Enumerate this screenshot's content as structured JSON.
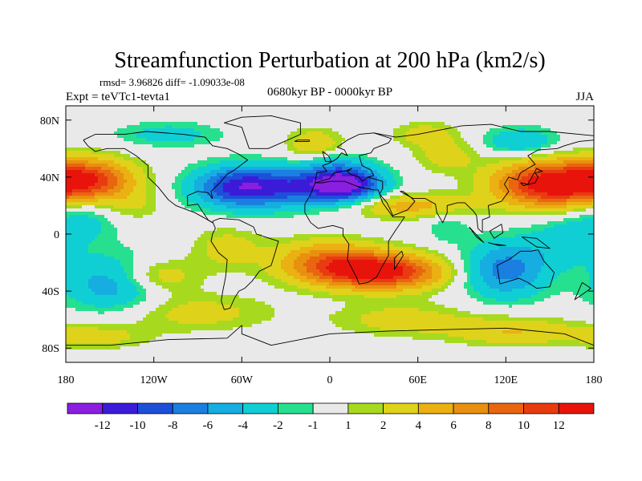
{
  "chart_data": {
    "type": "filled-contour-map",
    "title": "Streamfunction Perturbation at 200 hPa (km2/s)",
    "stats_line": "rmsd= 3.96826 diff= -1.09033e-08",
    "experiment_label": "Expt = teVTc1-tevta1",
    "period_label": "0680kyr BP - 0000kyr BP",
    "season_label": "JJA",
    "x_axis": {
      "range": [
        -180,
        180
      ],
      "ticks": [
        -180,
        -120,
        -60,
        0,
        60,
        120,
        180
      ],
      "tick_labels": [
        "180",
        "120W",
        "60W",
        "0",
        "60E",
        "120E",
        "180"
      ]
    },
    "y_axis": {
      "range": [
        -90,
        90
      ],
      "ticks": [
        80,
        40,
        0,
        -40,
        -80
      ],
      "tick_labels": [
        "80N",
        "40N",
        "0",
        "40S",
        "80S"
      ]
    },
    "colorbar": {
      "labels": [
        "-12",
        "-10",
        "-8",
        "-6",
        "-4",
        "-2",
        "-1",
        "1",
        "2",
        "4",
        "6",
        "8",
        "10",
        "12"
      ],
      "colors": [
        "#8a1fe0",
        "#3c1bd8",
        "#1d4fd9",
        "#1a7fe0",
        "#16aee0",
        "#10cfd4",
        "#27e08f",
        "#e9e9e9",
        "#a7da1e",
        "#dfd21a",
        "#ebb012",
        "#e89010",
        "#ea6510",
        "#e83c10",
        "#e8140c"
      ]
    },
    "field_centers": [
      {
        "lon": 10,
        "lat": 35,
        "value": -14,
        "sx": 18,
        "sy": 9
      },
      {
        "lon": -62,
        "lat": 33,
        "value": -11,
        "sx": 22,
        "sy": 10
      },
      {
        "lon": -25,
        "lat": 33,
        "value": -6,
        "sx": 20,
        "sy": 10
      },
      {
        "lon": 120,
        "lat": -25,
        "value": -7,
        "sx": 20,
        "sy": 14
      },
      {
        "lon": 52,
        "lat": 20,
        "value": 5,
        "sx": 30,
        "sy": 6
      },
      {
        "lon": 0,
        "lat": 52,
        "value": -2,
        "sx": 14,
        "sy": 6
      },
      {
        "lon": -145,
        "lat": -35,
        "value": -6,
        "sx": 25,
        "sy": 14
      },
      {
        "lon": -170,
        "lat": 10,
        "value": -3,
        "sx": 18,
        "sy": 12
      },
      {
        "lon": 160,
        "lat": -5,
        "value": -3,
        "sx": 18,
        "sy": 12
      },
      {
        "lon": 80,
        "lat": 55,
        "value": 3,
        "sx": 15,
        "sy": 8
      },
      {
        "lon": 150,
        "lat": 35,
        "value": 14,
        "sx": 26,
        "sy": 11
      },
      {
        "lon": -165,
        "lat": 38,
        "value": 11,
        "sx": 22,
        "sy": 10
      },
      {
        "lon": 20,
        "lat": -25,
        "value": 12,
        "sx": 30,
        "sy": 9
      },
      {
        "lon": 50,
        "lat": -28,
        "value": 5,
        "sx": 24,
        "sy": 8
      },
      {
        "lon": -5,
        "lat": -15,
        "value": 4,
        "sx": 24,
        "sy": 9
      },
      {
        "lon": -10,
        "lat": 62,
        "value": 4,
        "sx": 13,
        "sy": 8
      },
      {
        "lon": 65,
        "lat": 70,
        "value": 3,
        "sx": 15,
        "sy": 6
      },
      {
        "lon": 130,
        "lat": 65,
        "value": -4,
        "sx": 18,
        "sy": 7
      },
      {
        "lon": -110,
        "lat": 70,
        "value": -3,
        "sx": 25,
        "sy": 6
      },
      {
        "lon": -120,
        "lat": -30,
        "value": 5,
        "sx": 20,
        "sy": 9
      },
      {
        "lon": -70,
        "lat": -10,
        "value": 3,
        "sx": 16,
        "sy": 10
      },
      {
        "lon": -95,
        "lat": -55,
        "value": 3,
        "sx": 38,
        "sy": 9
      },
      {
        "lon": 50,
        "lat": -60,
        "value": 3,
        "sx": 32,
        "sy": 8
      },
      {
        "lon": 125,
        "lat": -68,
        "value": 4,
        "sx": 30,
        "sy": 7
      },
      {
        "lon": -160,
        "lat": -72,
        "value": 3,
        "sx": 25,
        "sy": 6
      },
      {
        "lon": -135,
        "lat": 20,
        "value": 2,
        "sx": 14,
        "sy": 8
      },
      {
        "lon": 80,
        "lat": 5,
        "value": -2,
        "sx": 10,
        "sy": 8
      }
    ],
    "coastlines": [
      [
        [
          -168,
          66
        ],
        [
          -160,
          70
        ],
        [
          -140,
          70
        ],
        [
          -125,
          72
        ],
        [
          -100,
          70
        ],
        [
          -85,
          68
        ],
        [
          -80,
          62
        ],
        [
          -70,
          60
        ],
        [
          -62,
          56
        ],
        [
          -56,
          52
        ],
        [
          -65,
          45
        ],
        [
          -70,
          42
        ],
        [
          -75,
          36
        ],
        [
          -81,
          30
        ],
        [
          -80,
          25
        ],
        [
          -83,
          29
        ],
        [
          -90,
          30
        ],
        [
          -97,
          27
        ],
        [
          -97,
          20
        ],
        [
          -90,
          21
        ],
        [
          -87,
          16
        ],
        [
          -83,
          10
        ],
        [
          -80,
          8
        ],
        [
          -85,
          11
        ],
        [
          -92,
          15
        ],
        [
          -105,
          20
        ],
        [
          -110,
          24
        ],
        [
          -117,
          33
        ],
        [
          -124,
          40
        ],
        [
          -124,
          48
        ],
        [
          -132,
          55
        ],
        [
          -140,
          60
        ],
        [
          -152,
          60
        ],
        [
          -160,
          58
        ],
        [
          -165,
          62
        ],
        [
          -168,
          66
        ]
      ],
      [
        [
          -80,
          9
        ],
        [
          -75,
          11
        ],
        [
          -62,
          10
        ],
        [
          -52,
          5
        ],
        [
          -50,
          0
        ],
        [
          -44,
          -2
        ],
        [
          -35,
          -5
        ],
        [
          -37,
          -12
        ],
        [
          -40,
          -22
        ],
        [
          -48,
          -26
        ],
        [
          -53,
          -33
        ],
        [
          -58,
          -38
        ],
        [
          -62,
          -40
        ],
        [
          -65,
          -45
        ],
        [
          -68,
          -52
        ],
        [
          -72,
          -53
        ],
        [
          -74,
          -47
        ],
        [
          -73,
          -40
        ],
        [
          -71,
          -30
        ],
        [
          -70,
          -18
        ],
        [
          -76,
          -13
        ],
        [
          -81,
          -5
        ],
        [
          -80,
          0
        ],
        [
          -78,
          4
        ],
        [
          -80,
          9
        ]
      ],
      [
        [
          -10,
          36
        ],
        [
          -5,
          36
        ],
        [
          0,
          37
        ],
        [
          10,
          37
        ],
        [
          20,
          33
        ],
        [
          30,
          31
        ],
        [
          33,
          31
        ],
        [
          36,
          22
        ],
        [
          43,
          12
        ],
        [
          51,
          12
        ],
        [
          45,
          3
        ],
        [
          40,
          -5
        ],
        [
          40,
          -15
        ],
        [
          35,
          -24
        ],
        [
          32,
          -30
        ],
        [
          26,
          -34
        ],
        [
          20,
          -35
        ],
        [
          18,
          -30
        ],
        [
          12,
          -18
        ],
        [
          13,
          -7
        ],
        [
          9,
          -1
        ],
        [
          9,
          4
        ],
        [
          2,
          6
        ],
        [
          -8,
          4
        ],
        [
          -13,
          8
        ],
        [
          -17,
          15
        ],
        [
          -17,
          21
        ],
        [
          -13,
          28
        ],
        [
          -10,
          36
        ]
      ],
      [
        [
          -10,
          36
        ],
        [
          -9,
          43
        ],
        [
          -2,
          44
        ],
        [
          -5,
          48
        ],
        [
          0,
          50
        ],
        [
          5,
          53
        ],
        [
          8,
          57
        ],
        [
          12,
          55
        ],
        [
          10,
          59
        ],
        [
          5,
          61
        ],
        [
          12,
          66
        ],
        [
          20,
          70
        ],
        [
          30,
          71
        ],
        [
          42,
          67
        ],
        [
          40,
          64
        ],
        [
          30,
          60
        ],
        [
          28,
          57
        ],
        [
          20,
          55
        ],
        [
          22,
          48
        ],
        [
          28,
          45
        ],
        [
          30,
          41
        ],
        [
          26,
          40
        ],
        [
          22,
          37
        ],
        [
          20,
          40
        ],
        [
          14,
          42
        ],
        [
          12,
          44
        ],
        [
          15,
          46
        ],
        [
          10,
          44
        ],
        [
          8,
          44
        ],
        [
          3,
          43
        ],
        [
          0,
          39
        ],
        [
          -10,
          36
        ]
      ],
      [
        [
          30,
          71
        ],
        [
          45,
          68
        ],
        [
          60,
          70
        ],
        [
          75,
          73
        ],
        [
          90,
          76
        ],
        [
          110,
          77
        ],
        [
          130,
          72
        ],
        [
          150,
          72
        ],
        [
          170,
          70
        ],
        [
          180,
          69
        ]
      ],
      [
        [
          26,
          40
        ],
        [
          36,
          37
        ],
        [
          36,
          32
        ],
        [
          34,
          28
        ],
        [
          39,
          22
        ],
        [
          43,
          13
        ],
        [
          53,
          17
        ],
        [
          58,
          23
        ],
        [
          55,
          26
        ],
        [
          50,
          30
        ],
        [
          48,
          30
        ],
        [
          55,
          26
        ],
        [
          57,
          25
        ],
        [
          65,
          25
        ],
        [
          72,
          21
        ],
        [
          73,
          15
        ],
        [
          77,
          8
        ],
        [
          80,
          15
        ],
        [
          80,
          20
        ],
        [
          87,
          22
        ],
        [
          92,
          22
        ],
        [
          98,
          16
        ],
        [
          100,
          13
        ],
        [
          101,
          4
        ],
        [
          104,
          1
        ],
        [
          104,
          10
        ],
        [
          109,
          12
        ],
        [
          108,
          20
        ],
        [
          117,
          23
        ],
        [
          122,
          30
        ],
        [
          119,
          35
        ],
        [
          122,
          40
        ],
        [
          128,
          38
        ],
        [
          130,
          43
        ],
        [
          140,
          49
        ],
        [
          135,
          55
        ],
        [
          142,
          59
        ],
        [
          155,
          60
        ],
        [
          160,
          62
        ],
        [
          170,
          65
        ],
        [
          180,
          66
        ]
      ],
      [
        [
          -5,
          58
        ],
        [
          -3,
          51
        ],
        [
          1,
          51
        ],
        [
          -1,
          55
        ],
        [
          -5,
          58
        ]
      ],
      [
        [
          -24,
          65
        ],
        [
          -14,
          65
        ],
        [
          -14,
          66
        ],
        [
          -22,
          66
        ],
        [
          -24,
          65
        ]
      ],
      [
        [
          -55,
          60
        ],
        [
          -42,
          60
        ],
        [
          -20,
          70
        ],
        [
          -20,
          78
        ],
        [
          -40,
          83
        ],
        [
          -60,
          82
        ],
        [
          -72,
          78
        ],
        [
          -60,
          75
        ],
        [
          -55,
          60
        ]
      ],
      [
        [
          130,
          36
        ],
        [
          132,
          34
        ],
        [
          140,
          36
        ],
        [
          142,
          40
        ],
        [
          140,
          43
        ],
        [
          145,
          44
        ],
        [
          141,
          46
        ],
        [
          135,
          35
        ],
        [
          130,
          36
        ]
      ],
      [
        [
          95,
          5
        ],
        [
          105,
          -6
        ],
        [
          100,
          -2
        ],
        [
          95,
          5
        ]
      ],
      [
        [
          108,
          -6
        ],
        [
          115,
          -8
        ],
        [
          120,
          -8
        ],
        [
          112,
          -7
        ],
        [
          108,
          -6
        ]
      ],
      [
        [
          109,
          2
        ],
        [
          112,
          -3
        ],
        [
          118,
          1
        ],
        [
          117,
          7
        ],
        [
          109,
          2
        ]
      ],
      [
        [
          131,
          -2
        ],
        [
          141,
          -3
        ],
        [
          150,
          -10
        ],
        [
          141,
          -9
        ],
        [
          131,
          -2
        ]
      ],
      [
        [
          114,
          -22
        ],
        [
          122,
          -18
        ],
        [
          130,
          -12
        ],
        [
          137,
          -12
        ],
        [
          142,
          -11
        ],
        [
          146,
          -19
        ],
        [
          153,
          -27
        ],
        [
          150,
          -37
        ],
        [
          141,
          -38
        ],
        [
          135,
          -34
        ],
        [
          129,
          -31
        ],
        [
          116,
          -35
        ],
        [
          114,
          -22
        ]
      ],
      [
        [
          172,
          -34
        ],
        [
          178,
          -38
        ],
        [
          174,
          -41
        ],
        [
          167,
          -46
        ],
        [
          172,
          -34
        ]
      ],
      [
        [
          44,
          -25
        ],
        [
          50,
          -15
        ],
        [
          49,
          -12
        ],
        [
          44,
          -17
        ],
        [
          44,
          -25
        ]
      ],
      [
        [
          -180,
          -78
        ],
        [
          -150,
          -78
        ],
        [
          -110,
          -74
        ],
        [
          -70,
          -73
        ],
        [
          -60,
          -64
        ],
        [
          -60,
          -70
        ],
        [
          -40,
          -78
        ],
        [
          0,
          -70
        ],
        [
          40,
          -68
        ],
        [
          80,
          -67
        ],
        [
          120,
          -66
        ],
        [
          160,
          -70
        ],
        [
          180,
          -78
        ]
      ]
    ]
  }
}
